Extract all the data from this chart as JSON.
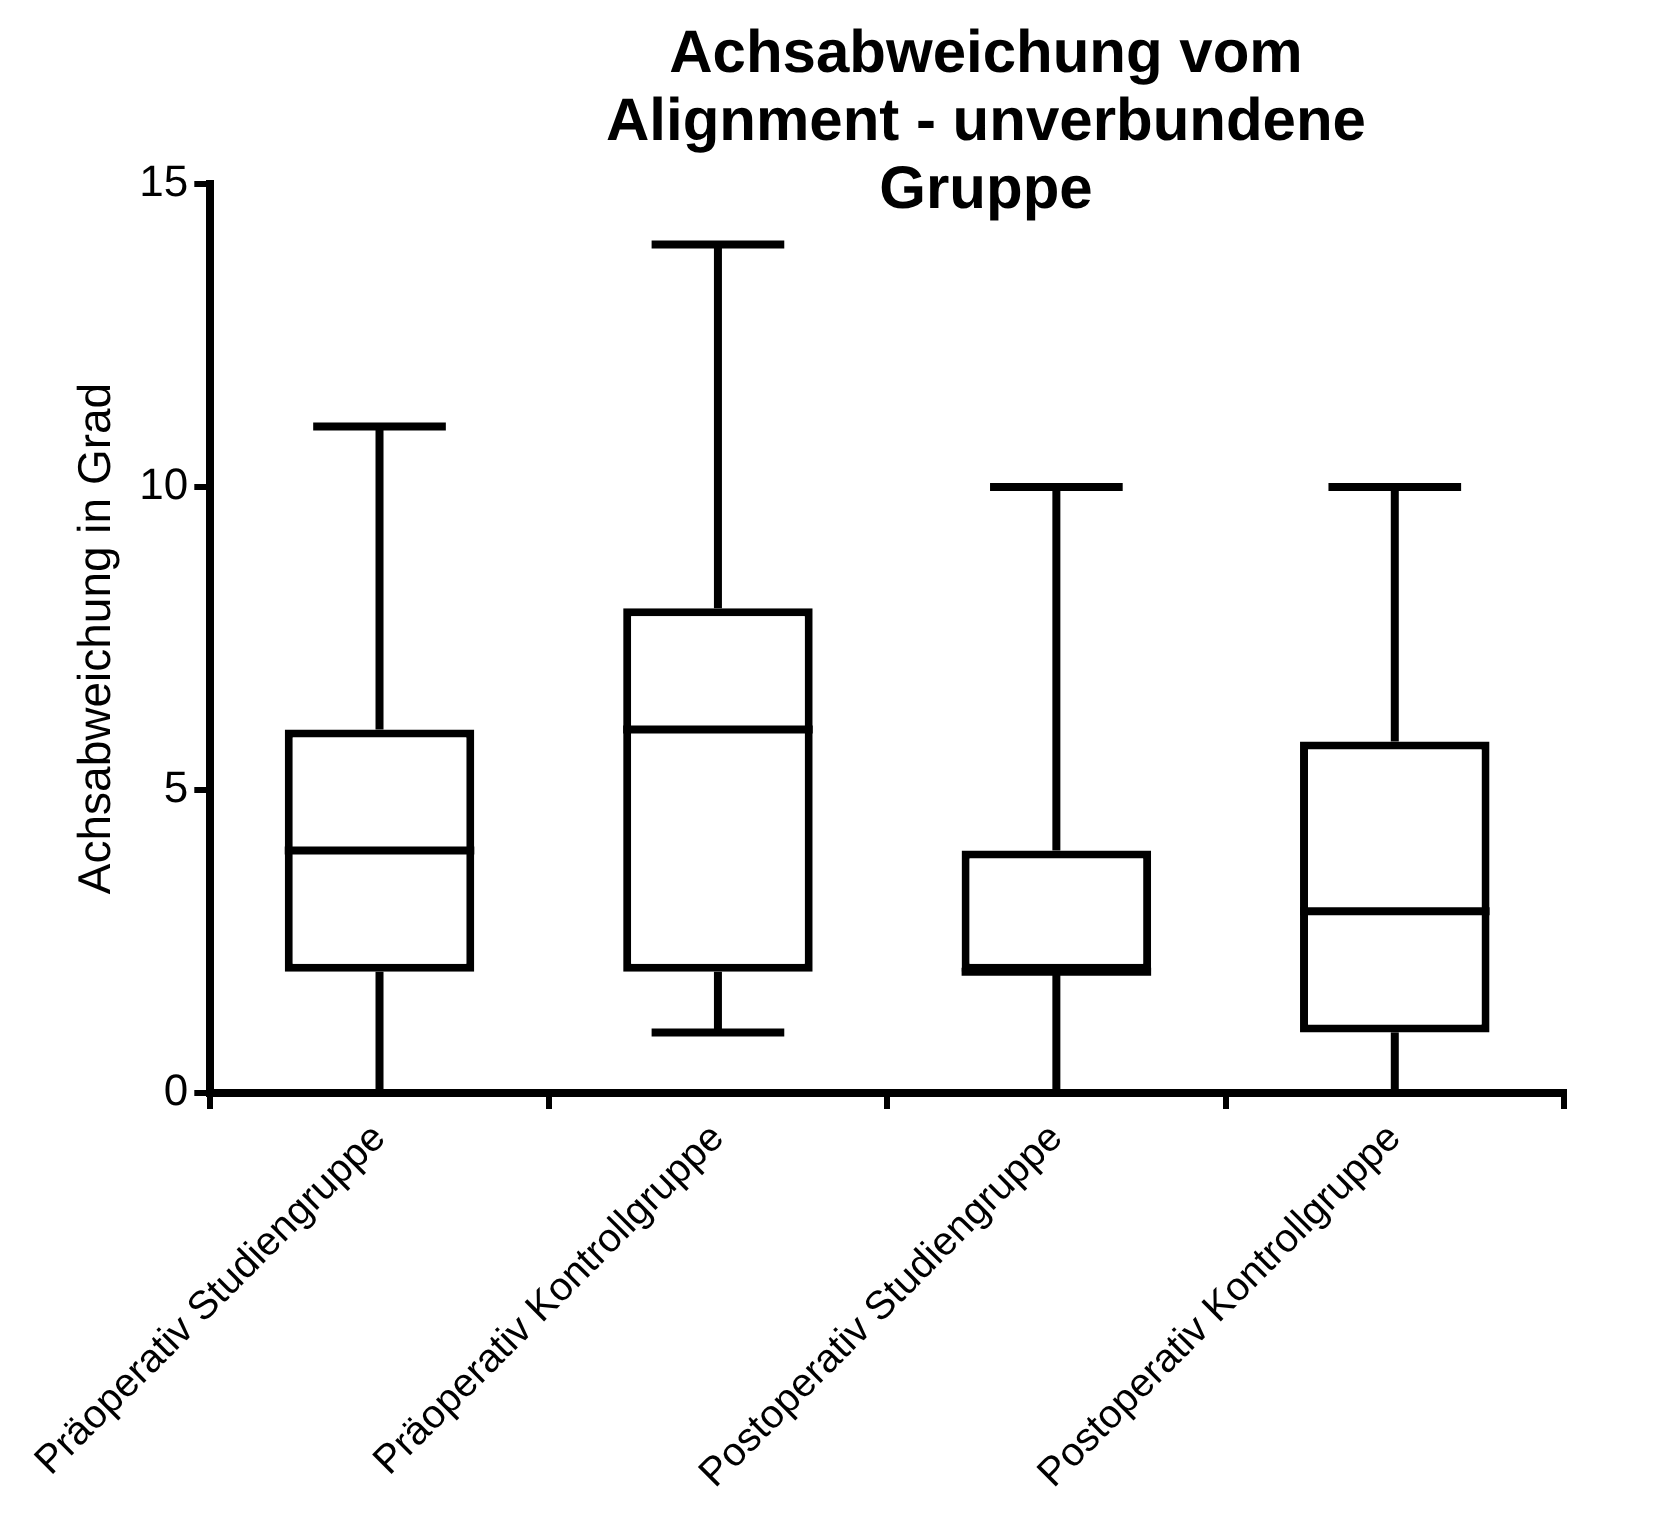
{
  "chart_data": {
    "type": "box",
    "title": "Achsabweichung vom Alignment - unverbundene Gruppe",
    "ylabel": "Achsabweichung in Grad",
    "categories": [
      "Präoperativ Studiengruppe",
      "Präoperativ Kontrollgruppe",
      "Postoperativ Studiengruppe",
      "Postoperativ Kontrollgruppe"
    ],
    "boxes": [
      {
        "low": 0,
        "q1": 2,
        "median": 4,
        "q3": 6,
        "high": 11
      },
      {
        "low": 1,
        "q1": 2,
        "median": 6,
        "q3": 8,
        "high": 14
      },
      {
        "low": 0,
        "q1": 2,
        "median": 2,
        "q3": 4,
        "high": 10
      },
      {
        "low": 0,
        "q1": 1,
        "median": 3,
        "q3": 5.8,
        "high": 10
      }
    ],
    "ylim": [
      0,
      15
    ],
    "yticks": [
      0,
      5,
      10,
      15
    ],
    "grid": false,
    "legend": false
  }
}
